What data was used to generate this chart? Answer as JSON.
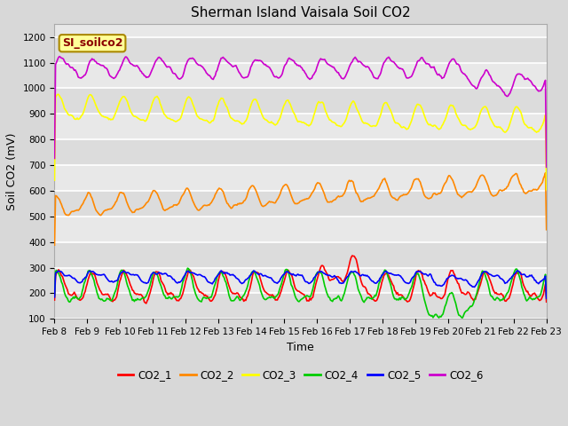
{
  "title": "Sherman Island Vaisala Soil CO2",
  "ylabel": "Soil CO2 (mV)",
  "xlabel": "Time",
  "legend_label": "SI_soilco2",
  "series": [
    "CO2_1",
    "CO2_2",
    "CO2_3",
    "CO2_4",
    "CO2_5",
    "CO2_6"
  ],
  "colors": [
    "#ff0000",
    "#ff8800",
    "#ffff00",
    "#00cc00",
    "#0000ff",
    "#cc00cc"
  ],
  "ylim": [
    100,
    1250
  ],
  "yticks": [
    100,
    200,
    300,
    400,
    500,
    600,
    700,
    800,
    900,
    1000,
    1100,
    1200
  ],
  "xtick_labels": [
    "Feb 8",
    "Feb 9",
    "Feb 10",
    "Feb 11",
    "Feb 12",
    "Feb 13",
    "Feb 14",
    "Feb 15",
    "Feb 16",
    "Feb 17",
    "Feb 18",
    "Feb 19",
    "Feb 20",
    "Feb 21",
    "Feb 22",
    "Feb 23"
  ],
  "n_points": 500,
  "bg_color": "#d8d8d8",
  "plot_bg_color": "#e8e8e8",
  "band_colors": [
    "#dcdcdc",
    "#e8e8e8"
  ],
  "linewidth": 1.2,
  "title_fontsize": 11,
  "axis_fontsize": 9,
  "tick_fontsize": 7.5
}
